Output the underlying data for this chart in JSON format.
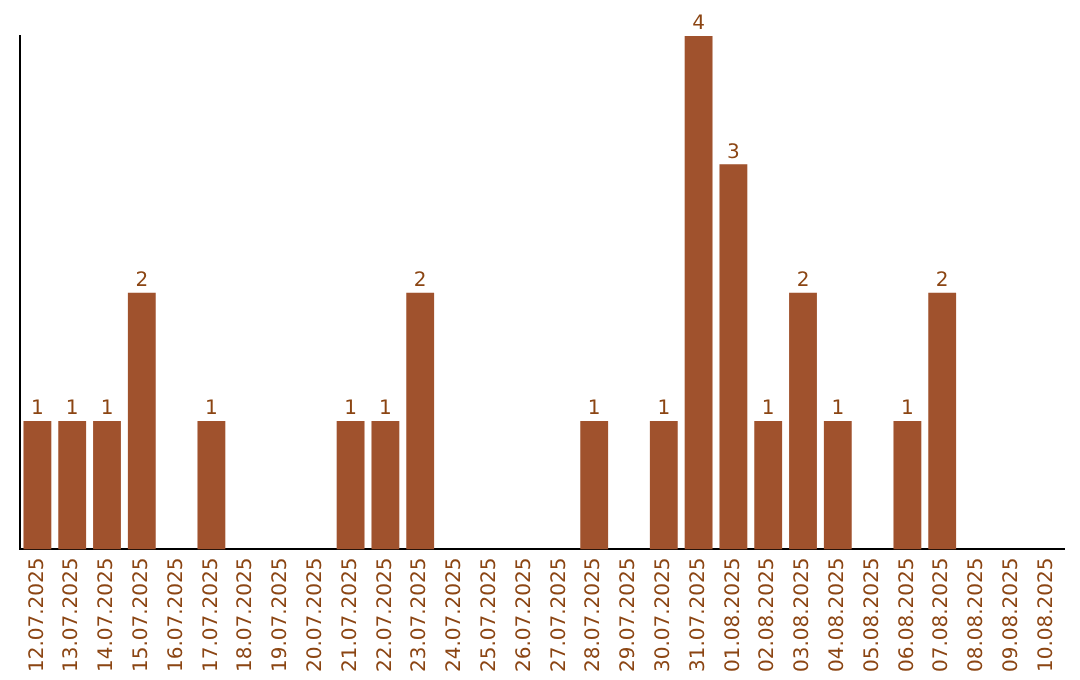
{
  "chart_data": {
    "type": "bar",
    "categories": [
      "12.07.2025",
      "13.07.2025",
      "14.07.2025",
      "15.07.2025",
      "16.07.2025",
      "17.07.2025",
      "18.07.2025",
      "19.07.2025",
      "20.07.2025",
      "21.07.2025",
      "22.07.2025",
      "23.07.2025",
      "24.07.2025",
      "25.07.2025",
      "26.07.2025",
      "27.07.2025",
      "28.07.2025",
      "29.07.2025",
      "30.07.2025",
      "31.07.2025",
      "01.08.2025",
      "02.08.2025",
      "03.08.2025",
      "04.08.2025",
      "05.08.2025",
      "06.08.2025",
      "07.08.2025",
      "08.08.2025",
      "09.08.2025",
      "10.08.2025"
    ],
    "values": [
      1,
      1,
      1,
      2,
      0,
      1,
      0,
      0,
      0,
      1,
      1,
      2,
      0,
      0,
      0,
      0,
      1,
      0,
      1,
      4,
      3,
      1,
      2,
      1,
      0,
      1,
      2,
      0,
      0,
      0
    ],
    "value_labels": [
      "1",
      "1",
      "1",
      "2",
      null,
      "1",
      null,
      null,
      null,
      "1",
      "1",
      "2",
      null,
      null,
      null,
      null,
      "1",
      null,
      "1",
      "4",
      "3",
      "1",
      "2",
      "1",
      null,
      "1",
      "2",
      null,
      null,
      null
    ],
    "color": "#a0522d",
    "ylim": [
      0,
      4
    ],
    "grid": false,
    "legend": false
  }
}
